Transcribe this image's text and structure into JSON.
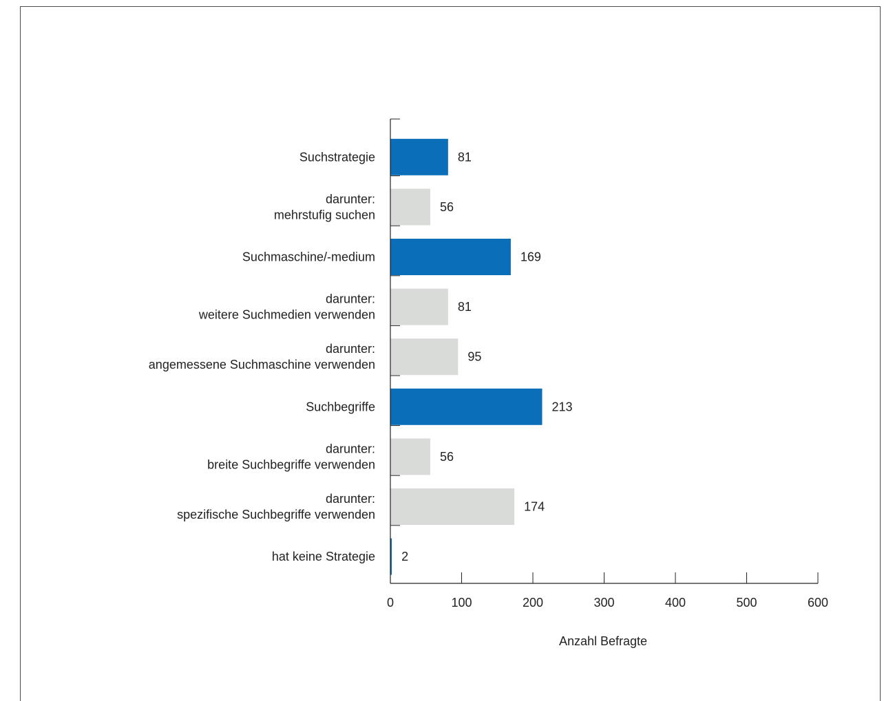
{
  "chart_data": {
    "type": "bar",
    "orientation": "horizontal",
    "categories": [
      [
        "Suchstrategie"
      ],
      [
        "darunter:",
        "mehrstufig suchen"
      ],
      [
        "Suchmaschine/-medium"
      ],
      [
        "darunter:",
        "weitere Suchmedien verwenden"
      ],
      [
        "darunter:",
        "angemessene Suchmaschine verwenden"
      ],
      [
        "Suchbegriffe"
      ],
      [
        "darunter:",
        "breite Suchbegriffe verwenden"
      ],
      [
        "darunter:",
        "spezifische Suchbegriffe verwenden"
      ],
      [
        "hat keine Strategie"
      ]
    ],
    "values": [
      81,
      56,
      169,
      81,
      95,
      213,
      56,
      174,
      2
    ],
    "value_labels": [
      "81",
      "56",
      "169",
      "81",
      "95",
      "213",
      "56",
      "174",
      "2"
    ],
    "bar_kinds": [
      "main",
      "sub",
      "main",
      "sub",
      "sub",
      "main",
      "sub",
      "sub",
      "main"
    ],
    "colors": {
      "main": "#0a6eb8",
      "sub": "#d9dbd9",
      "axis": "#222222"
    },
    "xlim": [
      0,
      600
    ],
    "xticks": [
      0,
      100,
      200,
      300,
      400,
      500,
      600
    ],
    "xtick_labels": [
      "0",
      "100",
      "200",
      "300",
      "400",
      "500",
      "600"
    ],
    "xlabel": "Anzahl Befragte",
    "ylabel": "",
    "title": "",
    "grid": false,
    "legend": "none"
  }
}
